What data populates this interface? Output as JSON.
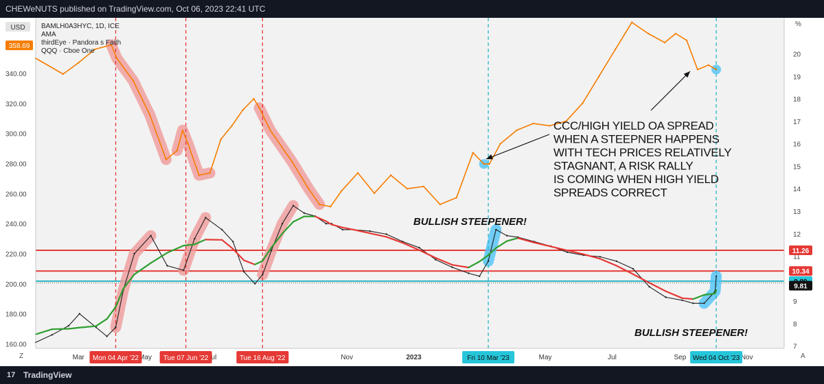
{
  "header": {
    "publisher_text": "CHEWeNUTS published on TradingView.com, Oct 06, 2023 22:41 UTC"
  },
  "footer": {
    "brand": "TradingView",
    "logo_glyph": "17"
  },
  "legend": {
    "currency": "USD",
    "lines": [
      "BAMLH0A3HYC, 1D, ICE",
      "AMA",
      "thirdEye · Pandora s Faith",
      "QQQ · Cboe One"
    ],
    "last_price": "358.69"
  },
  "corner_labels": {
    "left_bottom": "Z",
    "right_bottom": "A",
    "right_top": "%"
  },
  "colors": {
    "spread_line": "#f57c00",
    "qqq_line": "#1e1e1e",
    "ama_red": "#e53935",
    "ama_green": "#2e9e2e",
    "red_highlight": "#ef9a9a",
    "cyan_highlight": "#4fc3f7",
    "red_vline": "#e53935",
    "cyan_vline": "#29b6c6",
    "bg": "#f2f2f2"
  },
  "annotations": {
    "note": [
      "CCC/HIGH YIELD OA SPREAD",
      "WHEN A STEEPNER HAPPENS",
      "WITH TECH PRICES RELATIVELY",
      "STAGNANT, A RISK RALLY",
      "IS COMING WHEN HIGH YIELD",
      "SPREADS CORRECT"
    ],
    "steepener_1": "BULLISH STEEPENER!",
    "steepener_2": "BULLISH STEEPENER!"
  },
  "chart_data": {
    "type": "line",
    "x_axis_labels": [
      "Mar",
      "May",
      "Jul",
      "Nov",
      "2023",
      "May",
      "Jul",
      "Sep",
      "Nov"
    ],
    "event_dates": [
      {
        "label": "Mon 04 Apr '22",
        "kind": "red"
      },
      {
        "label": "Tue 07 Jun '22",
        "kind": "red"
      },
      {
        "label": "Tue 16 Aug '22",
        "kind": "red"
      },
      {
        "label": "Fri 10 Mar '23",
        "kind": "cyan"
      },
      {
        "label": "Wed 04 Oct '23",
        "kind": "cyan"
      }
    ],
    "left_axis": {
      "unit": "USD",
      "ticks": [
        160,
        180,
        200,
        220,
        240,
        260,
        280,
        300,
        320,
        340
      ],
      "range": [
        157,
        377
      ]
    },
    "right_axis": {
      "unit": "%",
      "ticks": [
        7,
        8,
        9,
        10,
        11,
        12,
        13,
        14,
        15,
        16,
        17,
        18,
        19,
        20
      ],
      "range": [
        6.9,
        21.6
      ]
    },
    "price_labels_right": [
      {
        "value": 11.26,
        "text": "11.26",
        "style": "red"
      },
      {
        "value": 10.34,
        "text": "10.34",
        "style": "red"
      },
      {
        "value": 9.89,
        "text": "9.89",
        "style": "cyan"
      },
      {
        "value": 9.81,
        "text": "9.81",
        "style": "black"
      }
    ],
    "horizontal_levels": [
      {
        "value": 11.26,
        "style": "red"
      },
      {
        "value": 10.34,
        "style": "red"
      },
      {
        "value": 9.89,
        "style": "cyan"
      }
    ],
    "series": [
      {
        "name": "BAMLH0A3HYC",
        "axis": "right",
        "x": [
          "2022-01-21",
          "2022-02-15",
          "2022-03-01",
          "2022-03-16",
          "2022-03-31",
          "2022-04-05",
          "2022-04-20",
          "2022-05-05",
          "2022-05-20",
          "2022-05-30",
          "2022-06-04",
          "2022-06-09",
          "2022-06-19",
          "2022-06-29",
          "2022-07-09",
          "2022-07-19",
          "2022-07-29",
          "2022-08-08",
          "2022-08-13",
          "2022-08-23",
          "2022-09-12",
          "2022-09-27",
          "2022-10-07",
          "2022-10-17",
          "2022-10-27",
          "2022-11-11",
          "2022-11-26",
          "2022-12-11",
          "2022-12-26",
          "2023-01-10",
          "2023-01-25",
          "2023-02-09",
          "2023-02-24",
          "2023-03-06",
          "2023-03-11",
          "2023-03-21",
          "2023-04-05",
          "2023-04-20",
          "2023-05-05",
          "2023-05-20",
          "2023-06-04",
          "2023-06-19",
          "2023-07-04",
          "2023-07-19",
          "2023-08-03",
          "2023-08-18",
          "2023-08-28",
          "2023-09-07",
          "2023-09-17",
          "2023-09-27",
          "2023-10-04"
        ],
        "values": [
          19.8,
          19.1,
          19.6,
          20.2,
          20.4,
          19.8,
          18.8,
          17.3,
          15.3,
          15.7,
          16.6,
          16.0,
          14.6,
          14.7,
          16.2,
          16.8,
          17.5,
          18.0,
          17.6,
          16.6,
          15.2,
          14.0,
          13.3,
          13.2,
          13.9,
          14.7,
          13.8,
          14.6,
          14.0,
          14.1,
          13.3,
          13.6,
          15.6,
          15.1,
          15.1,
          16.0,
          16.6,
          16.9,
          16.8,
          17.0,
          17.8,
          19.0,
          20.2,
          21.4,
          20.9,
          20.5,
          20.9,
          20.6,
          19.3,
          19.5,
          19.3
        ]
      },
      {
        "name": "QQQ",
        "axis": "left",
        "x": [
          "2022-01-21",
          "2022-02-05",
          "2022-02-20",
          "2022-03-02",
          "2022-03-17",
          "2022-03-27",
          "2022-04-04",
          "2022-04-11",
          "2022-04-21",
          "2022-05-06",
          "2022-05-21",
          "2022-06-05",
          "2022-06-15",
          "2022-06-25",
          "2022-07-10",
          "2022-07-20",
          "2022-07-30",
          "2022-08-09",
          "2022-08-16",
          "2022-08-24",
          "2022-09-03",
          "2022-09-13",
          "2022-09-23",
          "2022-10-03",
          "2022-10-13",
          "2022-10-18",
          "2022-10-28",
          "2022-11-07",
          "2022-11-22",
          "2022-12-07",
          "2022-12-22",
          "2023-01-06",
          "2023-01-21",
          "2023-02-05",
          "2023-02-20",
          "2023-03-02",
          "2023-03-10",
          "2023-03-17",
          "2023-03-27",
          "2023-04-06",
          "2023-04-21",
          "2023-05-06",
          "2023-05-21",
          "2023-06-05",
          "2023-06-20",
          "2023-07-05",
          "2023-07-20",
          "2023-08-04",
          "2023-08-19",
          "2023-09-03",
          "2023-09-13",
          "2023-09-23",
          "2023-10-03",
          "2023-10-04"
        ],
        "values": [
          161,
          166,
          172,
          180,
          171,
          165,
          171,
          196,
          220,
          232,
          212,
          209,
          230,
          244,
          236,
          228,
          208,
          200,
          206,
          222,
          240,
          252,
          247,
          245,
          240,
          240,
          236,
          236,
          235,
          233,
          228,
          224,
          216,
          211,
          207,
          205,
          215,
          236,
          232,
          231,
          228,
          225,
          221,
          219,
          218,
          215,
          210,
          198,
          191,
          189,
          187,
          187,
          195,
          205
        ]
      }
    ]
  }
}
